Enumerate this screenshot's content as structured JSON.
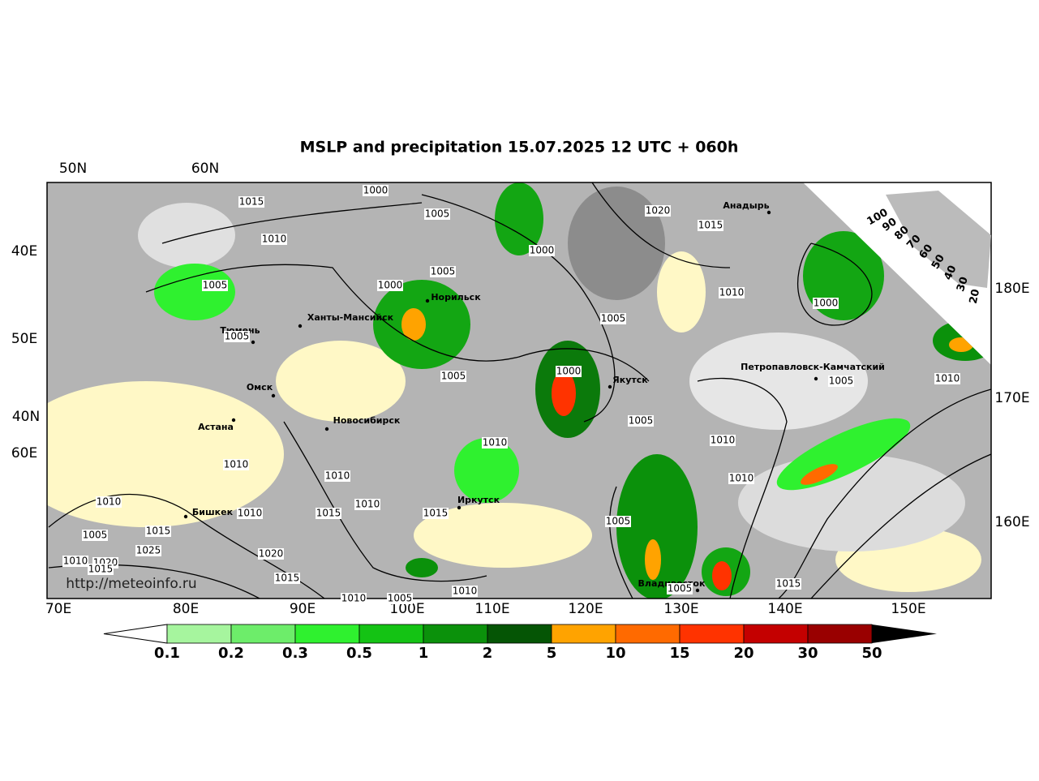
{
  "map": {
    "title": "MSLP and precipitation 15.07.2025 12 UTC + 060h",
    "grid_labels": {
      "top": [
        "50N",
        "60N"
      ],
      "left": [
        "40E",
        "50E",
        "40N",
        "60E"
      ],
      "right": [
        "180E",
        "170E",
        "160E"
      ],
      "bottom": [
        "70E",
        "80E",
        "90E",
        "100E",
        "110E",
        "120E",
        "130E",
        "140E",
        "150E"
      ]
    },
    "cities": [
      "Анадырь",
      "Норильск",
      "Ханты-Мансийск",
      "Тюмень",
      "Якутск",
      "Петропавловск-Камчатский",
      "Омск",
      "Астана",
      "Новосибирск",
      "Иркутск",
      "Бишкек",
      "Владивосток"
    ],
    "isobar_labels": [
      1000,
      1015,
      1005,
      1010,
      1020,
      1015,
      1000,
      1005,
      1005,
      1000,
      1010,
      1000,
      1005,
      1005,
      1005,
      1000,
      1005,
      1010,
      1005,
      1010,
      1010,
      1010,
      1010,
      1010,
      1010,
      1015,
      1010,
      1015,
      1010,
      1005,
      1015,
      1005,
      1025,
      1020,
      1010,
      1020,
      1015,
      1015,
      1015,
      1010,
      1005,
      1010,
      1005
    ],
    "watermark": "http://meteoinfo.ru"
  },
  "colorbar": {
    "labels": [
      0.1,
      0.2,
      0.3,
      0.5,
      1,
      2,
      5,
      10,
      15,
      20,
      30,
      50
    ],
    "colors": [
      "#a6f59e",
      "#6ded6a",
      "#2ff12f",
      "#14c314",
      "#0b910b",
      "#055505",
      "#ffa300",
      "#ff6a00",
      "#ff3300",
      "#c40000",
      "#990000"
    ]
  },
  "cloud_scale": {
    "labels": [
      100,
      90,
      80,
      70,
      60,
      50,
      40,
      30,
      20
    ]
  }
}
